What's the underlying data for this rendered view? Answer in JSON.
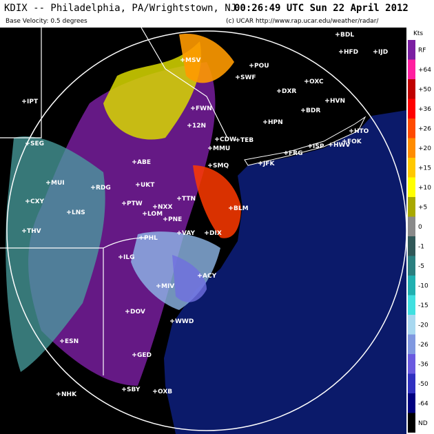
{
  "header": {
    "station": "KDIX -- Philadelphia, PA/Wrightstown, NJ",
    "time": "00:26:49 UTC Sun 22 April 2012",
    "product": "Base Velocity: 0.5 degrees",
    "credit": "(c) UCAR  http://www.rap.ucar.edu/weather/radar/"
  },
  "legend": {
    "unit": "Kts",
    "labels": [
      "RF",
      "+64",
      "+50",
      "+36",
      "+26",
      "+20",
      "+15",
      "+10",
      "+5",
      "0",
      "-1",
      "-5",
      "-10",
      "-15",
      "-20",
      "-26",
      "-36",
      "-50",
      "-64",
      "ND"
    ],
    "colors": [
      "#7b1fa2",
      "#ff1fa0",
      "#c00000",
      "#ff0000",
      "#ff4a00",
      "#ff8c00",
      "#ffc800",
      "#ffff00",
      "#a8a800",
      "#8a8a8a",
      "#305858",
      "#2a7f7f",
      "#20b0b0",
      "#40e0e0",
      "#a8d8f0",
      "#8098e0",
      "#6a5ae0",
      "#3030c0",
      "#000080",
      "#000000"
    ]
  },
  "stations": [
    "MSV",
    "POU",
    "SWF",
    "DXR",
    "OXC",
    "BDL",
    "HFD",
    "IJD",
    "HVN",
    "BDR",
    "FWN",
    "HPN",
    "ISP",
    "HWV",
    "FOK",
    "HTO",
    "FRG",
    "JFK",
    "TEB",
    "CDW",
    "MMU",
    "SMQ",
    "12N",
    "ABE",
    "IPT",
    "SEG",
    "RDG",
    "MUI",
    "UKT",
    "PTW",
    "NXX",
    "LOM",
    "PNE",
    "TTN",
    "BLM",
    "ILG",
    "PHL",
    "VAY",
    "DIX",
    "MIV",
    "ACY",
    "DOV",
    "WWD",
    "GED",
    "SBY",
    "OXB",
    "THV",
    "LNS",
    "CXY",
    "NHK",
    "ESN"
  ]
}
